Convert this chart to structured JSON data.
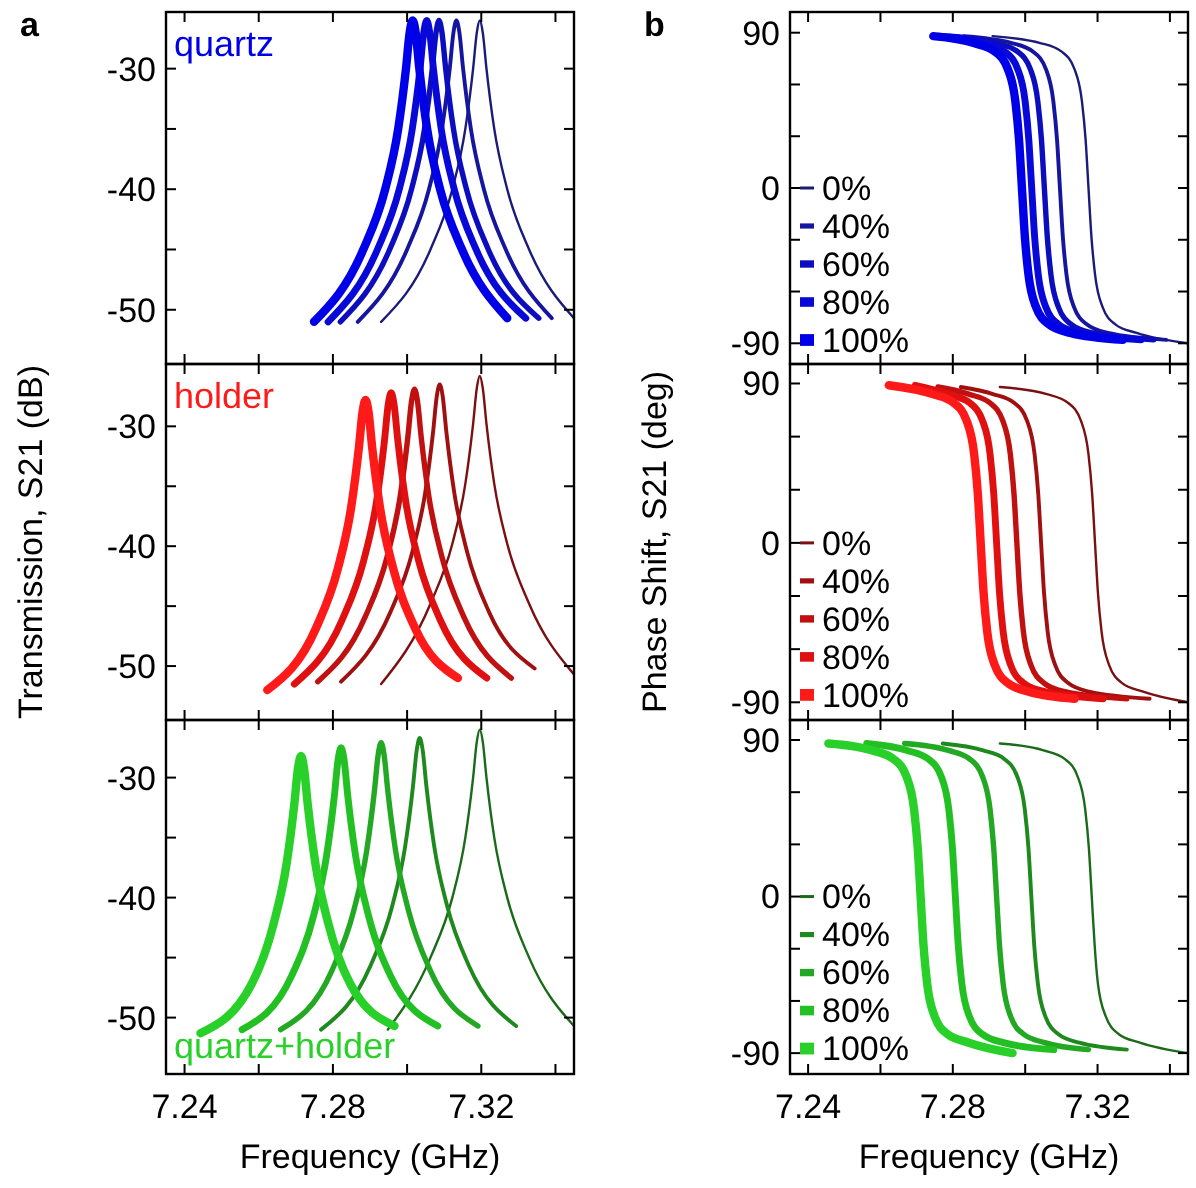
{
  "chart_data": [
    {
      "type": "line",
      "title": "a",
      "annotations": [
        "quartz"
      ],
      "tick_labels": "y",
      "xlim": [
        7.235,
        7.345
      ],
      "ylim": [
        -54.5,
        -25.3
      ],
      "xticks": [
        7.24,
        {
          "value": 7.26,
          "label": null
        },
        7.28,
        {
          "value": 7.3,
          "label": null
        },
        7.32,
        {
          "value": 7.34,
          "label": null
        }
      ],
      "yticks": [
        -30,
        -40,
        -50,
        {
          "value": -35,
          "label": null
        },
        {
          "value": -45,
          "label": null
        }
      ],
      "series": [
        {
          "color": "#1b1b7a",
          "x": [
            7.293,
            7.3063,
            7.3122,
            7.3157,
            7.3178,
            7.3188,
            7.3196,
            7.3204,
            7.3214,
            7.3235,
            7.327,
            7.3329,
            7.345
          ],
          "values": [
            -51,
            -45,
            -40,
            -35,
            -30,
            -27,
            -26,
            -27,
            -30,
            -35,
            -40,
            -45,
            -50.7
          ]
        },
        {
          "color": "#1515a0",
          "x": [
            7.2867,
            7.3,
            7.3059,
            7.3094,
            7.3115,
            7.3125,
            7.3133,
            7.3141,
            7.3151,
            7.3172,
            7.3207,
            7.3266,
            7.339
          ],
          "values": [
            -51,
            -45,
            -40,
            -35,
            -30,
            -27,
            -26,
            -27,
            -30,
            -35,
            -40,
            -45,
            -50.7
          ]
        },
        {
          "color": "#0d0dc0",
          "x": [
            7.282,
            7.2953,
            7.3012,
            7.3047,
            7.3068,
            7.3078,
            7.3086,
            7.3094,
            7.3104,
            7.3125,
            7.316,
            7.3219,
            7.3355
          ],
          "values": [
            -51,
            -45,
            -40,
            -35,
            -30,
            -27,
            -26,
            -27,
            -30,
            -35,
            -40,
            -45,
            -50.7
          ]
        },
        {
          "color": "#0808d8",
          "x": [
            7.2787,
            7.292,
            7.2979,
            7.3014,
            7.3035,
            7.3045,
            7.3053,
            7.3061,
            7.3071,
            7.3092,
            7.3127,
            7.3186,
            7.332
          ],
          "values": [
            -51,
            -45,
            -40,
            -35,
            -30,
            -27,
            -26,
            -27,
            -30,
            -35,
            -40,
            -45,
            -50.7
          ]
        },
        {
          "color": "#0000e8",
          "x": [
            7.2749,
            7.2882,
            7.2941,
            7.2976,
            7.2997,
            7.3007,
            7.3015,
            7.3023,
            7.3033,
            7.3054,
            7.3089,
            7.3148,
            7.327
          ],
          "values": [
            -51,
            -45,
            -40,
            -35,
            -30,
            -27,
            -26,
            -27,
            -30,
            -35,
            -40,
            -45,
            -50.7
          ]
        }
      ]
    },
    {
      "type": "line",
      "title": "b",
      "tick_labels": "y",
      "legend": "left",
      "xlim": [
        7.235,
        7.345
      ],
      "ylim": [
        -102,
        102
      ],
      "xticks": [
        7.24,
        {
          "value": 7.26,
          "label": null
        },
        7.28,
        {
          "value": 7.3,
          "label": null
        },
        7.32,
        {
          "value": 7.34,
          "label": null
        }
      ],
      "yticks": [
        90,
        0,
        -90,
        {
          "value": 60,
          "label": null
        },
        {
          "value": 30,
          "label": null
        },
        {
          "value": -30,
          "label": null
        },
        {
          "value": -60,
          "label": null
        }
      ],
      "series": [
        {
          "name": "0%",
          "color": "#1b1b7a",
          "x": [
            7.291,
            7.3042,
            7.3101,
            7.3136,
            7.3157,
            7.3167,
            7.3175,
            7.3183,
            7.3193,
            7.3214,
            7.3249,
            7.3308,
            7.345
          ],
          "values": [
            88,
            84,
            79,
            69,
            50,
            28,
            0,
            -28,
            -50,
            -69,
            -79,
            -84,
            -90
          ]
        },
        {
          "name": "40%",
          "color": "#1515a0",
          "x": [
            7.283,
            7.2963,
            7.3022,
            7.3057,
            7.3078,
            7.3088,
            7.3096,
            7.3104,
            7.3114,
            7.3135,
            7.317,
            7.3229,
            7.339
          ],
          "values": [
            88,
            84,
            79,
            69,
            50,
            28,
            0,
            -28,
            -50,
            -69,
            -79,
            -84,
            -88
          ]
        },
        {
          "name": "60%",
          "color": "#0d0dc0",
          "x": [
            7.279,
            7.292,
            7.2979,
            7.3014,
            7.3035,
            7.3045,
            7.3053,
            7.3061,
            7.3071,
            7.3092,
            7.3127,
            7.3186,
            7.3355
          ],
          "values": [
            88,
            84,
            79,
            69,
            50,
            28,
            0,
            -28,
            -50,
            -69,
            -79,
            -84,
            -88
          ]
        },
        {
          "name": "80%",
          "color": "#0808d8",
          "x": [
            7.276,
            7.2885,
            7.2944,
            7.2979,
            7.3,
            7.301,
            7.3018,
            7.3026,
            7.3036,
            7.3057,
            7.3092,
            7.3151,
            7.332
          ],
          "values": [
            88,
            84,
            79,
            69,
            50,
            28,
            0,
            -28,
            -50,
            -69,
            -79,
            -84,
            -88
          ]
        },
        {
          "name": "100%",
          "color": "#0000e8",
          "x": [
            7.2746,
            7.2858,
            7.2917,
            7.2952,
            7.2973,
            7.2983,
            7.2991,
            7.2999,
            7.3009,
            7.303,
            7.3065,
            7.3124,
            7.327
          ],
          "values": [
            88,
            84,
            79,
            69,
            50,
            28,
            0,
            -28,
            -50,
            -69,
            -79,
            -84,
            -88
          ]
        }
      ]
    },
    {
      "type": "line",
      "ylabel": "Transmission, S21 (dB)",
      "annotations": [
        "holder"
      ],
      "tick_labels": "y",
      "xlim": [
        7.235,
        7.345
      ],
      "ylim": [
        -54.5,
        -24.8
      ],
      "xticks": [
        7.24,
        {
          "value": 7.26,
          "label": null
        },
        7.28,
        {
          "value": 7.3,
          "label": null
        },
        7.32,
        {
          "value": 7.34,
          "label": null
        }
      ],
      "yticks": [
        -30,
        -40,
        -50,
        {
          "value": -35,
          "label": null
        },
        {
          "value": -45,
          "label": null
        }
      ],
      "series": [
        {
          "color": "#7a1010",
          "x": [
            7.293,
            7.3063,
            7.3122,
            7.3157,
            7.3178,
            7.3188,
            7.3196,
            7.3204,
            7.3214,
            7.3235,
            7.327,
            7.3329,
            7.345
          ],
          "values": [
            -51.5,
            -44.8,
            -39.8,
            -34.8,
            -29.8,
            -26.8,
            -25.8,
            -26.8,
            -29.8,
            -34.8,
            -39.8,
            -44.8,
            -50.7
          ]
        },
        {
          "color": "#a01010",
          "x": [
            7.2822,
            7.2955,
            7.3014,
            7.3049,
            7.307,
            7.308,
            7.3088,
            7.3096,
            7.3106,
            7.3127,
            7.3162,
            7.3221,
            7.3344
          ],
          "values": [
            -51.3,
            -45.5,
            -40.5,
            -35.5,
            -30.5,
            -27.5,
            -26.5,
            -27.5,
            -30.5,
            -35.5,
            -40.5,
            -45.5,
            -50.2
          ]
        },
        {
          "color": "#c01010",
          "x": [
            7.2759,
            7.2887,
            7.2946,
            7.2981,
            7.3002,
            7.3012,
            7.302,
            7.3028,
            7.3038,
            7.3059,
            7.3094,
            7.3153,
            7.3281
          ],
          "values": [
            -51.3,
            -45.9,
            -40.9,
            -35.9,
            -30.9,
            -27.9,
            -26.9,
            -27.9,
            -30.9,
            -35.9,
            -40.9,
            -45.9,
            -51
          ]
        },
        {
          "color": "#e01010",
          "x": [
            7.2696,
            7.2824,
            7.2883,
            7.2918,
            7.2939,
            7.2949,
            7.2957,
            7.2965,
            7.2975,
            7.2996,
            7.3031,
            7.309,
            7.3215
          ],
          "values": [
            -51.5,
            -46.2,
            -41.2,
            -36.2,
            -31.2,
            -28.2,
            -27.2,
            -28.2,
            -31.2,
            -36.2,
            -41.2,
            -46.2,
            -51
          ]
        },
        {
          "color": "#ff1a1a",
          "x": [
            7.2623,
            7.2755,
            7.2814,
            7.2849,
            7.287,
            7.288,
            7.2888,
            7.2896,
            7.2906,
            7.2927,
            7.2962,
            7.3021,
            7.3137
          ],
          "values": [
            -52,
            -46.8,
            -41.8,
            -36.8,
            -31.8,
            -28.8,
            -27.8,
            -28.8,
            -31.8,
            -36.8,
            -41.8,
            -46.8,
            -51
          ]
        }
      ]
    },
    {
      "type": "line",
      "ylabel": "Phase Shift, S21 (deg)",
      "tick_labels": "y",
      "legend": "left",
      "xlim": [
        7.235,
        7.345
      ],
      "ylim": [
        -100,
        101
      ],
      "xticks": [
        7.24,
        {
          "value": 7.26,
          "label": null
        },
        7.28,
        {
          "value": 7.3,
          "label": null
        },
        7.32,
        {
          "value": 7.34,
          "label": null
        }
      ],
      "yticks": [
        90,
        0,
        -90,
        {
          "value": 60,
          "label": null
        },
        {
          "value": 30,
          "label": null
        },
        {
          "value": -30,
          "label": null
        },
        {
          "value": -60,
          "label": null
        }
      ],
      "series": [
        {
          "name": "0%",
          "color": "#7a1010",
          "x": [
            7.293,
            7.306,
            7.3119,
            7.3154,
            7.3175,
            7.3185,
            7.3193,
            7.3201,
            7.3211,
            7.3232,
            7.3267,
            7.3326,
            7.345
          ],
          "values": [
            88,
            84,
            79,
            69,
            50,
            28,
            0,
            -28,
            -50,
            -69,
            -79,
            -84,
            -90
          ]
        },
        {
          "name": "40%",
          "color": "#a01010",
          "x": [
            7.2822,
            7.2911,
            7.297,
            7.3005,
            7.3026,
            7.3036,
            7.3044,
            7.3052,
            7.3062,
            7.3083,
            7.3118,
            7.3177,
            7.3344
          ],
          "values": [
            88,
            84,
            79,
            69,
            50,
            28,
            0,
            -28,
            -50,
            -69,
            -79,
            -84,
            -88
          ]
        },
        {
          "name": "60%",
          "color": "#c01010",
          "x": [
            7.2759,
            7.2844,
            7.2903,
            7.2938,
            7.2959,
            7.2969,
            7.2977,
            7.2985,
            7.2995,
            7.3016,
            7.3051,
            7.311,
            7.3281
          ],
          "values": [
            88,
            84,
            79,
            69,
            50,
            28,
            0,
            -28,
            -50,
            -69,
            -79,
            -84,
            -88
          ]
        },
        {
          "name": "80%",
          "color": "#e01010",
          "x": [
            7.2696,
            7.2788,
            7.2847,
            7.2882,
            7.2903,
            7.2913,
            7.2921,
            7.2929,
            7.2939,
            7.296,
            7.2995,
            7.3054,
            7.3215
          ],
          "values": [
            89,
            84,
            79,
            69,
            50,
            28,
            0,
            -28,
            -50,
            -69,
            -79,
            -84,
            -88
          ]
        },
        {
          "name": "100%",
          "color": "#ff1a1a",
          "x": [
            7.2623,
            7.2744,
            7.2803,
            7.2838,
            7.2859,
            7.2869,
            7.2877,
            7.2885,
            7.2895,
            7.2916,
            7.2951,
            7.301,
            7.3137
          ],
          "values": [
            89,
            84,
            79,
            69,
            50,
            28,
            0,
            -28,
            -50,
            -69,
            -79,
            -84,
            -88
          ]
        }
      ]
    },
    {
      "type": "line",
      "xlabel": "Frequency (GHz)",
      "annotations": [
        "quartz+holder"
      ],
      "xlim": [
        7.235,
        7.345
      ],
      "ylim": [
        -54.7,
        -25.2
      ],
      "xticks": [
        7.24,
        {
          "value": 7.26,
          "label": null
        },
        7.28,
        {
          "value": 7.3,
          "label": null
        },
        7.32,
        {
          "value": 7.34,
          "label": null
        }
      ],
      "yticks": [
        -30,
        -40,
        -50,
        {
          "value": -35,
          "label": null
        },
        {
          "value": -45,
          "label": null
        }
      ],
      "series": [
        {
          "color": "#1a6a1a",
          "x": [
            7.2948,
            7.3063,
            7.3122,
            7.3157,
            7.3178,
            7.3188,
            7.3196,
            7.3204,
            7.3214,
            7.3235,
            7.327,
            7.3329,
            7.345
          ],
          "values": [
            -51,
            -45,
            -40,
            -35,
            -30,
            -27,
            -26,
            -27,
            -30,
            -35,
            -40,
            -45,
            -50.7
          ]
        },
        {
          "color": "#1e8a1e",
          "x": [
            7.2768,
            7.2901,
            7.296,
            7.2995,
            7.3016,
            7.3026,
            7.3034,
            7.3042,
            7.3052,
            7.3073,
            7.3108,
            7.3167,
            7.3294
          ],
          "values": [
            -51,
            -45.7,
            -40.7,
            -35.7,
            -30.7,
            -27.7,
            -26.7,
            -27.7,
            -30.7,
            -35.7,
            -40.7,
            -45.7,
            -50.7
          ]
        },
        {
          "color": "#22a822",
          "x": [
            7.2659,
            7.2797,
            7.2856,
            7.2891,
            7.2912,
            7.2922,
            7.293,
            7.2938,
            7.2948,
            7.2969,
            7.3004,
            7.3063,
            7.3191
          ],
          "values": [
            -51,
            -46.1,
            -41.1,
            -36.1,
            -31.1,
            -28.1,
            -27.1,
            -28.1,
            -31.1,
            -36.1,
            -41.1,
            -46.1,
            -50.7
          ]
        },
        {
          "color": "#22c022",
          "x": [
            7.2555,
            7.2689,
            7.2748,
            7.2783,
            7.2804,
            7.2814,
            7.2822,
            7.283,
            7.284,
            7.2861,
            7.2896,
            7.2955,
            7.3083
          ],
          "values": [
            -51,
            -46.5,
            -41.5,
            -36.5,
            -31.5,
            -28.5,
            -27.5,
            -28.5,
            -31.5,
            -36.5,
            -41.5,
            -46.5,
            -50.7
          ]
        },
        {
          "color": "#2ad02a",
          "x": [
            7.2443,
            7.2581,
            7.264,
            7.2675,
            7.2696,
            7.2706,
            7.2714,
            7.2722,
            7.2732,
            7.2753,
            7.2788,
            7.2847,
            7.2966
          ],
          "values": [
            -51.3,
            -47.2,
            -42.2,
            -37.2,
            -32.2,
            -29.2,
            -28.2,
            -29.2,
            -32.2,
            -37.2,
            -42.2,
            -47.2,
            -50.7
          ]
        }
      ]
    },
    {
      "type": "line",
      "xlabel": "Frequency (GHz)",
      "legend": "left",
      "xlim": [
        7.235,
        7.345
      ],
      "ylim": [
        -102,
        101.5
      ],
      "xticks": [
        7.24,
        {
          "value": 7.26,
          "label": null
        },
        7.28,
        {
          "value": 7.3,
          "label": null
        },
        7.32,
        {
          "value": 7.34,
          "label": null
        }
      ],
      "yticks": [
        90,
        0,
        -90,
        {
          "value": 60,
          "label": null
        },
        {
          "value": 30,
          "label": null
        },
        {
          "value": -30,
          "label": null
        },
        {
          "value": -60,
          "label": null
        }
      ],
      "series": [
        {
          "name": "0%",
          "color": "#1a6a1a",
          "x": [
            7.293,
            7.3051,
            7.311,
            7.3145,
            7.3166,
            7.3176,
            7.3184,
            7.3192,
            7.3201,
            7.3223,
            7.3258,
            7.3317,
            7.345
          ],
          "values": [
            88,
            84,
            79,
            69,
            50,
            28,
            0,
            -28,
            -50,
            -69,
            -79,
            -84,
            -90
          ]
        },
        {
          "name": "40%",
          "color": "#1e8a1e",
          "x": [
            7.2772,
            7.2884,
            7.2943,
            7.2978,
            7.2999,
            7.3009,
            7.3017,
            7.3025,
            7.3035,
            7.3056,
            7.3091,
            7.315,
            7.3281
          ],
          "values": [
            88,
            84,
            79,
            69,
            50,
            28,
            0,
            -28,
            -50,
            -69,
            -79,
            -84,
            -88
          ]
        },
        {
          "name": "60%",
          "color": "#22a822",
          "x": [
            7.2667,
            7.2788,
            7.2847,
            7.2882,
            7.2903,
            7.2913,
            7.2921,
            7.2929,
            7.2939,
            7.296,
            7.2995,
            7.3054,
            7.3175
          ],
          "values": [
            88,
            84,
            79,
            69,
            50,
            28,
            0,
            -28,
            -50,
            -69,
            -79,
            -84,
            -88
          ]
        },
        {
          "name": "80%",
          "color": "#22c022",
          "x": [
            7.2562,
            7.2674,
            7.2733,
            7.2768,
            7.2789,
            7.2799,
            7.2807,
            7.2815,
            7.2825,
            7.2846,
            7.2881,
            7.294,
            7.3079
          ],
          "values": [
            88,
            84,
            79,
            69,
            50,
            28,
            0,
            -28,
            -50,
            -69,
            -79,
            -84,
            -88
          ]
        },
        {
          "name": "100%",
          "color": "#2ad02a",
          "x": [
            7.2456,
            7.2578,
            7.2637,
            7.2672,
            7.2693,
            7.2703,
            7.2711,
            7.2719,
            7.2729,
            7.275,
            7.2785,
            7.2844,
            7.2965
          ],
          "values": [
            88,
            84,
            79,
            69,
            50,
            28,
            0,
            -28,
            -50,
            -69,
            -79,
            -84,
            -90
          ]
        }
      ]
    }
  ]
}
